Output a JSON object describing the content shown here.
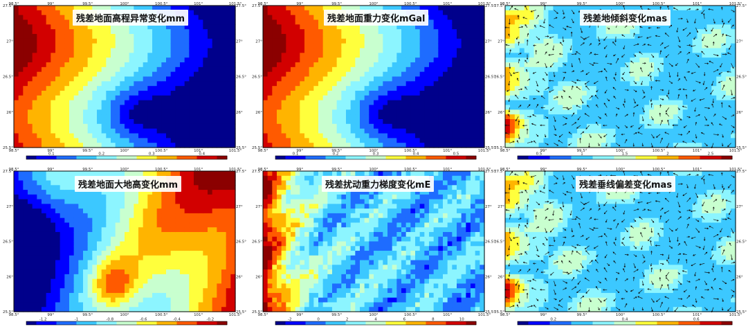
{
  "palette": [
    "#00008b",
    "#0000ff",
    "#1e6cff",
    "#3cc8ff",
    "#8cf5ff",
    "#c8ffcf",
    "#ffff3c",
    "#ffb400",
    "#ff5a00",
    "#d20000",
    "#8b0000"
  ],
  "panels": [
    {
      "id": "elevation",
      "title": "残差地面高程异常变化mm",
      "field": "west_hot",
      "arrows": false,
      "top_ticks": [
        "98.5°",
        "99°",
        "99.5°",
        "100°",
        "100.5°",
        "101°",
        "101.5°"
      ],
      "left_ticks": [
        "27.5°",
        "27°",
        "26.5°",
        "26°",
        "25.5°"
      ],
      "right_ticks": [
        "27.5°",
        "27°",
        "26.5°",
        "26°",
        "25.5°"
      ],
      "bottom_ticks": [
        "98.5°",
        "99°",
        "99.5°",
        "100°",
        "100.5°",
        "101°",
        "101.5°"
      ],
      "colorbar_labels": [
        "0.1",
        "0.2",
        "0.3",
        "0.4"
      ]
    },
    {
      "id": "gravity",
      "title": "残差地面重力变化mGal",
      "field": "west_hot",
      "arrows": false,
      "top_ticks": [
        "98.5°",
        "99°",
        "99.5°",
        "100°",
        "100.5°",
        "101°",
        "101.5°"
      ],
      "left_ticks": [
        "27.5°",
        "27°",
        "26.5°",
        "26°",
        "25.5°"
      ],
      "right_ticks": [
        "27.5°",
        "27°",
        "26.5°",
        "26°",
        "25.5°"
      ],
      "bottom_ticks": [
        "98.5°",
        "99°",
        "99.5°",
        "100°",
        "100.5°",
        "101°",
        "101.5°"
      ],
      "colorbar_labels": [
        "0.1",
        "0.2",
        "0.3",
        "0.4",
        "0.5"
      ]
    },
    {
      "id": "tilt",
      "title": "残差地倾斜变化mas",
      "field": "vector",
      "arrows": true,
      "top_ticks": [
        "98.5°",
        "99°",
        "99.5°",
        "100°",
        "100.5°",
        "101°",
        "101.5°"
      ],
      "left_ticks": [
        "27.5°",
        "27°",
        "26.5°",
        "26°",
        "25.5°"
      ],
      "right_ticks": [
        "27.5°",
        "27°",
        "26.5°",
        "26°",
        "25.5°"
      ],
      "bottom_ticks": [
        "98.5°",
        "99°",
        "99.5°",
        "100°",
        "100.5°",
        "101°",
        "101.5°"
      ],
      "colorbar_labels": [
        "0.5",
        "1",
        "1.5",
        "2",
        "2.5"
      ]
    },
    {
      "id": "geoid_height",
      "title": "残差地面大地高变化mm",
      "field": "east_hot",
      "arrows": false,
      "top_ticks": [
        "98.5°",
        "99°",
        "99.5°",
        "100°",
        "100.5°",
        "101°",
        "101.5°"
      ],
      "left_ticks": [
        "27.5°",
        "27°",
        "26.5°",
        "26°",
        "25.5°"
      ],
      "right_ticks": [
        "27.5°",
        "27°",
        "26.5°",
        "26°",
        "25.5°"
      ],
      "bottom_ticks": [
        "98.5°",
        "99°",
        "99.5°",
        "100°",
        "100.5°",
        "101°",
        "101.5°"
      ],
      "colorbar_labels": [
        "-1.2",
        "-1",
        "-0.8",
        "-0.6",
        "-0.4",
        "-0.2"
      ]
    },
    {
      "id": "gradient",
      "title": "残差扰动重力梯度变化mE",
      "field": "noisy_west",
      "arrows": false,
      "top_ticks": [
        "98.5°",
        "99°",
        "99.5°",
        "100°",
        "100.5°",
        "101°",
        "101.5°"
      ],
      "left_ticks": [
        "27.5°",
        "27°",
        "26.5°",
        "26°",
        "25.5°"
      ],
      "right_ticks": [
        "27.5°",
        "27°",
        "26.5°",
        "26°",
        "25.5°"
      ],
      "bottom_ticks": [
        "98.5°",
        "99°",
        "99.5°",
        "100°",
        "100.5°",
        "101°",
        "101.5°"
      ],
      "colorbar_labels": [
        "-2",
        "0",
        "2",
        "4",
        "6",
        "8",
        "10"
      ]
    },
    {
      "id": "deflection",
      "title": "残差垂线偏差变化mas",
      "field": "vector",
      "arrows": true,
      "top_ticks": [
        "98.5°",
        "99°",
        "99.5°",
        "100°",
        "100.5°",
        "101°",
        "101.5°"
      ],
      "left_ticks": [
        "27.5°",
        "27°",
        "26.5°",
        "26°",
        "25.5°"
      ],
      "right_ticks": [
        "27.5°",
        "27°",
        "26.5°",
        "26°",
        "25.5°"
      ],
      "bottom_ticks": [
        "98.5°",
        "99°",
        "99.5°",
        "100°",
        "100.5°",
        "101°",
        "101.5°"
      ],
      "colorbar_labels": [
        "0.2",
        "0.4",
        "0.6"
      ]
    }
  ]
}
